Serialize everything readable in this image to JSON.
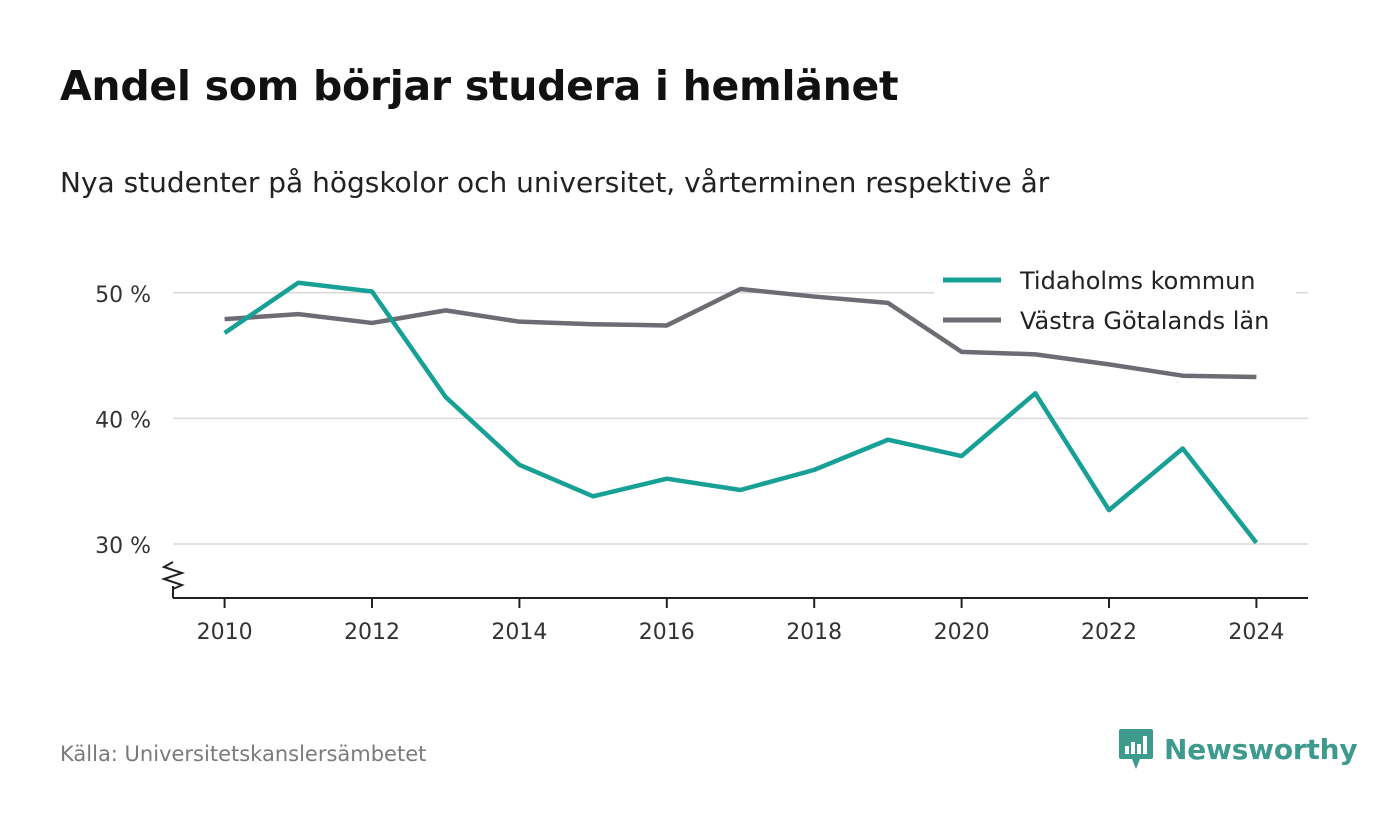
{
  "title": "Andel som börjar studera i hemlänet",
  "subtitle": "Nya studenter på högskolor och universitet, vårterminen respektive år",
  "source": "Källa: Universitetskanslersämbetet",
  "brand": {
    "name": "Newsworthy",
    "icon": "newsworthy-logo-icon",
    "color": "#3f9a8e"
  },
  "chart_data": {
    "type": "line",
    "x": [
      2010,
      2011,
      2012,
      2013,
      2014,
      2015,
      2016,
      2017,
      2018,
      2019,
      2020,
      2021,
      2022,
      2023,
      2024
    ],
    "series": [
      {
        "name": "Tidaholms kommun",
        "color": "#16a096",
        "values": [
          46.8,
          50.8,
          50.1,
          41.7,
          36.3,
          33.8,
          35.2,
          34.3,
          35.9,
          38.3,
          37.0,
          42.0,
          32.7,
          37.6,
          30.1
        ]
      },
      {
        "name": "Västra Götalands län",
        "color": "#6e6c72",
        "values": [
          47.9,
          48.3,
          47.6,
          48.6,
          47.7,
          47.5,
          47.4,
          50.3,
          49.7,
          49.2,
          45.3,
          45.1,
          44.3,
          43.4,
          43.3
        ]
      }
    ],
    "yticks": [
      30,
      40,
      50
    ],
    "ytick_labels": [
      "30 %",
      "40 %",
      "50 %"
    ],
    "xticks": [
      2010,
      2012,
      2014,
      2016,
      2018,
      2020,
      2022,
      2024
    ],
    "xtick_labels": [
      "2010",
      "2012",
      "2014",
      "2016",
      "2018",
      "2020",
      "2022",
      "2024"
    ],
    "ylim": [
      25.7,
      55
    ],
    "xlim": [
      2009.3,
      2024.7
    ],
    "grid": true,
    "axis_break": true,
    "legend": "top-right"
  }
}
